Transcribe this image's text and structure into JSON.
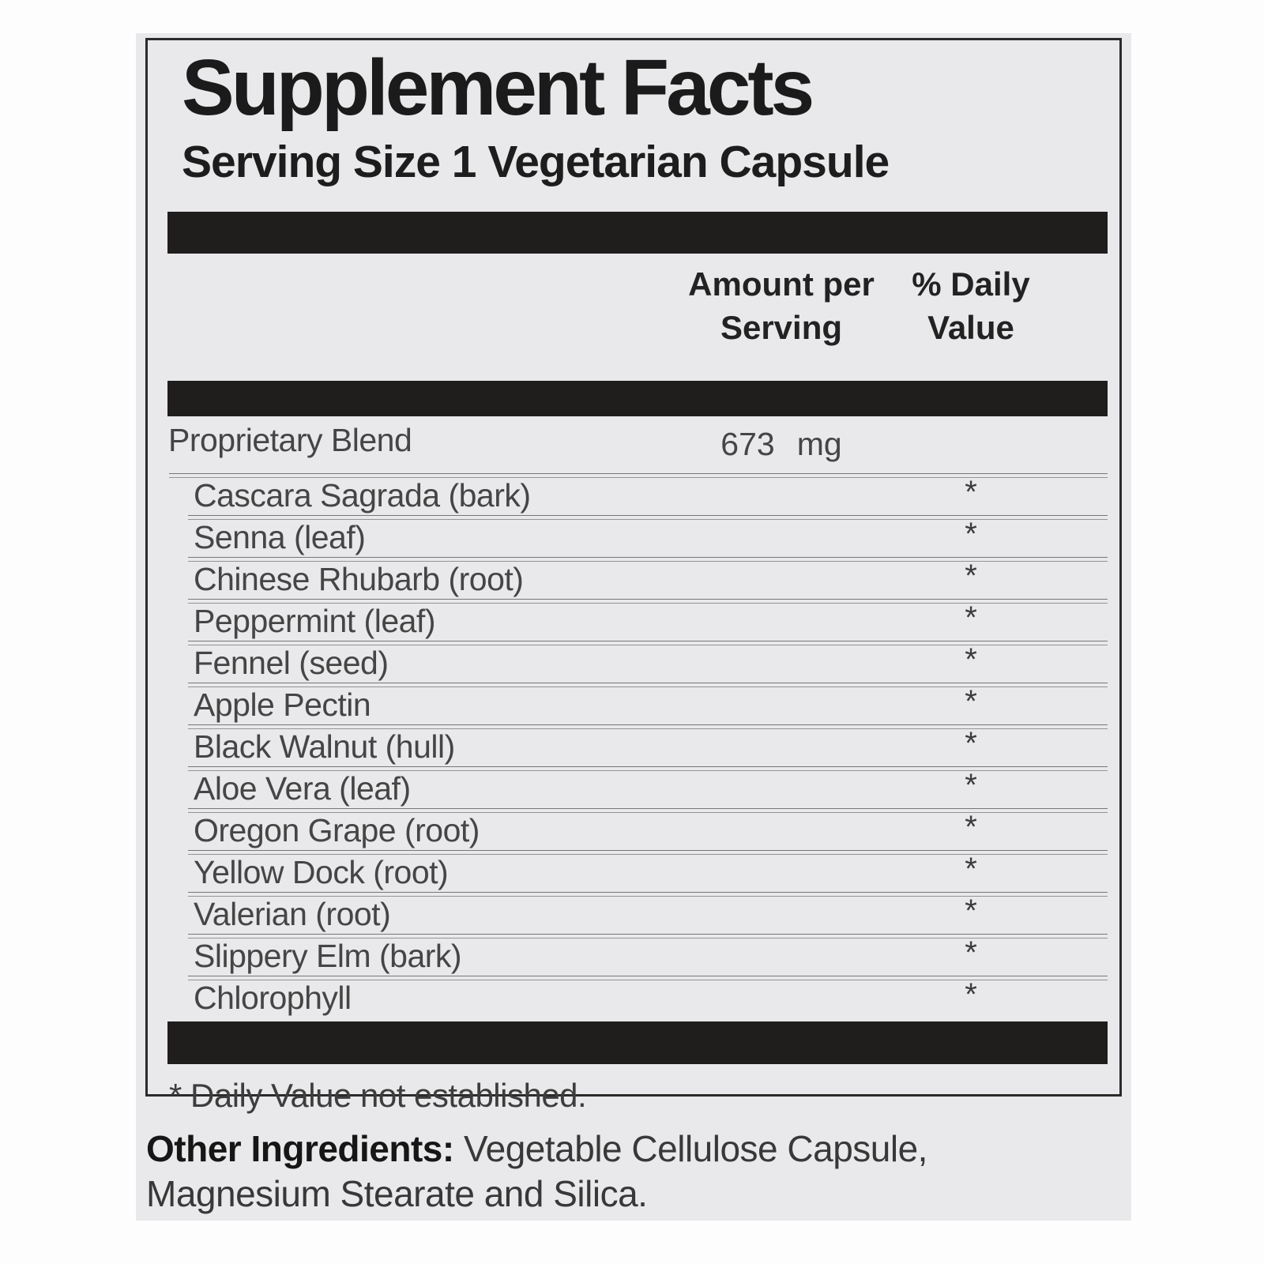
{
  "label": {
    "title": "Supplement Facts",
    "serving_size": "Serving Size 1 Vegetarian Capsule",
    "header": {
      "amount": "Amount per\nServing",
      "daily_value": "% Daily\nValue"
    },
    "blend": {
      "name": "Proprietary Blend",
      "amount_value": "673",
      "amount_unit": "mg"
    },
    "ingredients": [
      {
        "name": "Cascara Sagrada (bark)",
        "dv": "*"
      },
      {
        "name": "Senna (leaf)",
        "dv": "*"
      },
      {
        "name": "Chinese Rhubarb (root)",
        "dv": "*"
      },
      {
        "name": "Peppermint (leaf)",
        "dv": "*"
      },
      {
        "name": "Fennel (seed)",
        "dv": "*"
      },
      {
        "name": "Apple Pectin",
        "dv": "*"
      },
      {
        "name": "Black Walnut (hull)",
        "dv": "*"
      },
      {
        "name": "Aloe Vera (leaf)",
        "dv": "*"
      },
      {
        "name": "Oregon Grape (root)",
        "dv": "*"
      },
      {
        "name": "Yellow Dock (root)",
        "dv": "*"
      },
      {
        "name": "Valerian (root)",
        "dv": "*"
      },
      {
        "name": "Slippery Elm (bark)",
        "dv": "*"
      },
      {
        "name": "Chlorophyll",
        "dv": "*"
      }
    ],
    "footnote": "* Daily Value not established.",
    "other_ingredients": {
      "label": "Other Ingredients:",
      "text": " Vegetable Cellulose Capsule, Magnesium Stearate and Silica."
    },
    "colors": {
      "label_background": "#e9e9eb",
      "bar": "#201d1d",
      "border": "#2b2b2b",
      "body_text": "#454545"
    }
  }
}
